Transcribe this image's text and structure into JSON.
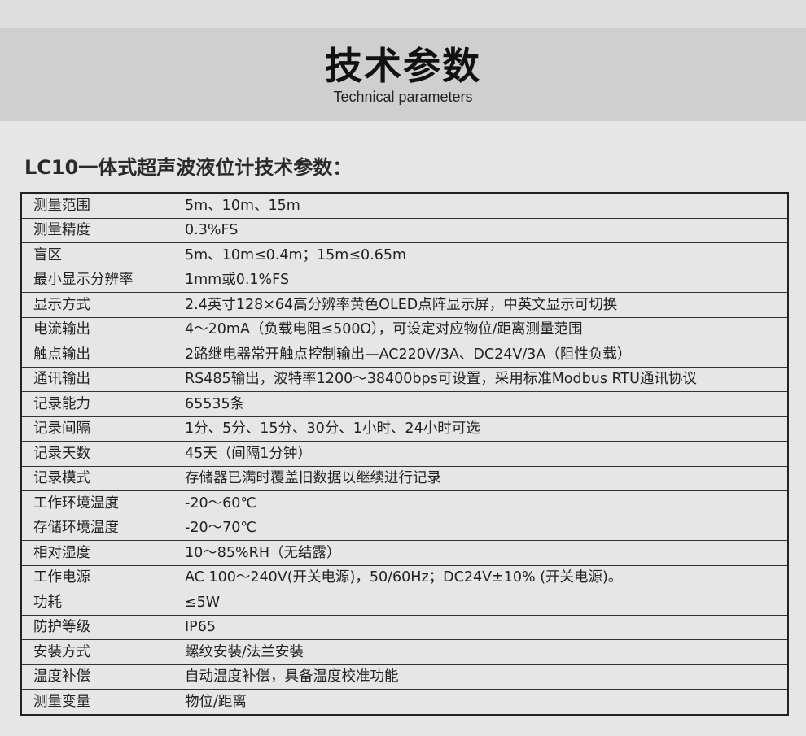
{
  "header": {
    "title": "技术参数",
    "subtitle": "Technical parameters"
  },
  "section_title": "LC10一体式超声波液位计技术参数：",
  "rows": [
    {
      "k": "测量范围",
      "v": "5m、10m、15m"
    },
    {
      "k": "测量精度",
      "v": "0.3%FS"
    },
    {
      "k": "盲区",
      "v": "5m、10m≤0.4m；15m≤0.65m"
    },
    {
      "k": "最小显示分辨率",
      "v": "1mm或0.1%FS"
    },
    {
      "k": "显示方式",
      "v": "2.4英寸128×64高分辨率黄色OLED点阵显示屏，中英文显示可切换"
    },
    {
      "k": "电流输出",
      "v": "4～20mA（负载电阻≤500Ω），可设定对应物位/距离测量范围"
    },
    {
      "k": "触点输出",
      "v": "2路继电器常开触点控制输出—AC220V/3A、DC24V/3A（阻性负载）"
    },
    {
      "k": "通讯输出",
      "v": "RS485输出，波特率1200～38400bps可设置，采用标准Modbus RTU通讯协议"
    },
    {
      "k": "记录能力",
      "v": "65535条"
    },
    {
      "k": "记录间隔",
      "v": "1分、5分、15分、30分、1小时、24小时可选"
    },
    {
      "k": "记录天数",
      "v": "45天（间隔1分钟）"
    },
    {
      "k": "记录模式",
      "v": "存储器已满时覆盖旧数据以继续进行记录"
    },
    {
      "k": "工作环境温度",
      "v": "-20～60℃"
    },
    {
      "k": "存储环境温度",
      "v": "-20～70℃"
    },
    {
      "k": "相对湿度",
      "v": "10～85%RH（无结露）"
    },
    {
      "k": "工作电源",
      "v": "AC 100～240V(开关电源)，50/60Hz；DC24V±10% (开关电源)。"
    },
    {
      "k": "功耗",
      "v": "≤5W"
    },
    {
      "k": "防护等级",
      "v": "IP65"
    },
    {
      "k": "安装方式",
      "v": "螺纹安装/法兰安装"
    },
    {
      "k": "温度补偿",
      "v": "自动温度补偿，具备温度校准功能"
    },
    {
      "k": "测量变量",
      "v": "物位/距离"
    }
  ]
}
